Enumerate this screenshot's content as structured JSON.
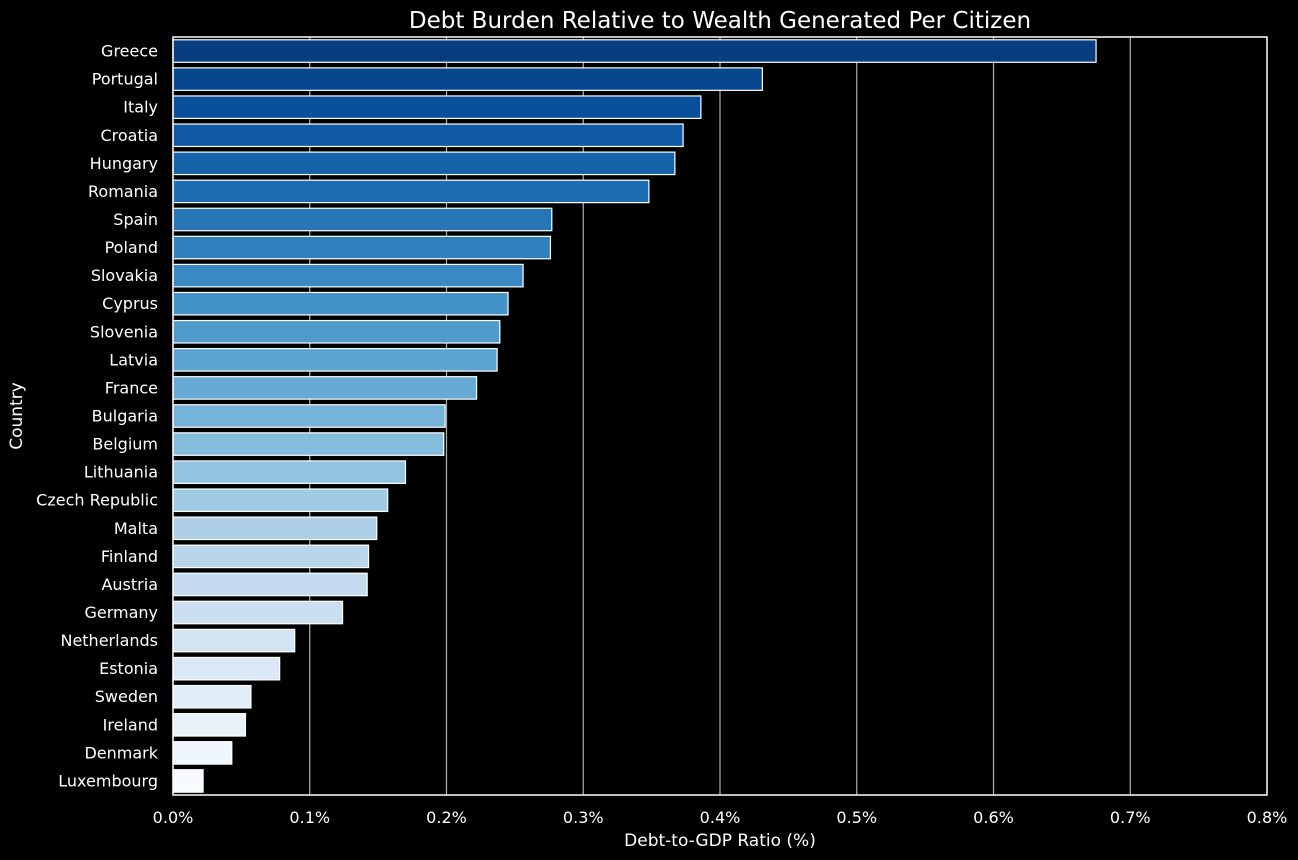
{
  "chart_data": {
    "type": "bar",
    "orientation": "horizontal",
    "title": "Debt Burden Relative to Wealth Generated Per Citizen",
    "xlabel": "Debt-to-GDP Ratio (%)",
    "ylabel": "Country",
    "xlim": [
      0,
      0.8
    ],
    "x_tick_values": [
      0,
      0.1,
      0.2,
      0.3,
      0.4,
      0.5,
      0.6,
      0.7,
      0.8
    ],
    "x_tick_labels": [
      "0.0%",
      "0.1%",
      "0.2%",
      "0.3%",
      "0.4%",
      "0.5%",
      "0.6%",
      "0.7%",
      "0.8%"
    ],
    "grid": "vertical",
    "colormap": "Blues_r",
    "colors": {
      "background": "#000000",
      "text": "#ffffff",
      "grid": "#b0b0b0",
      "frame": "#ffffff",
      "bar_edge": "#ffffff"
    },
    "categories": [
      "Greece",
      "Portugal",
      "Italy",
      "Croatia",
      "Hungary",
      "Romania",
      "Spain",
      "Poland",
      "Slovakia",
      "Cyprus",
      "Slovenia",
      "Latvia",
      "France",
      "Bulgaria",
      "Belgium",
      "Lithuania",
      "Czech Republic",
      "Malta",
      "Finland",
      "Austria",
      "Germany",
      "Netherlands",
      "Estonia",
      "Sweden",
      "Ireland",
      "Denmark",
      "Luxembourg"
    ],
    "values": [
      0.675,
      0.431,
      0.386,
      0.373,
      0.367,
      0.348,
      0.277,
      0.276,
      0.256,
      0.245,
      0.239,
      0.237,
      0.222,
      0.199,
      0.198,
      0.17,
      0.157,
      0.149,
      0.143,
      0.142,
      0.124,
      0.089,
      0.078,
      0.057,
      0.053,
      0.043,
      0.022
    ]
  }
}
